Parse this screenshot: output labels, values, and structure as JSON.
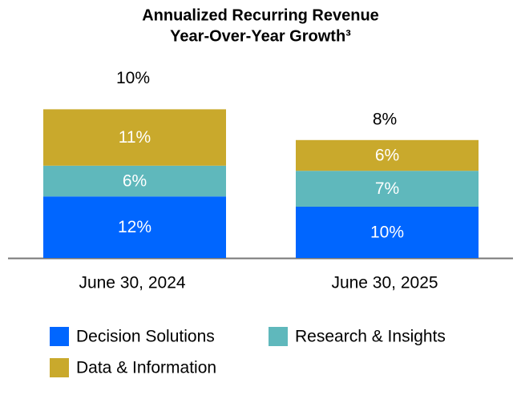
{
  "chart_data": {
    "type": "stacked-bar",
    "title": [
      "Annualized Recurring Revenue",
      "Year-Over-Year Growth³"
    ],
    "categories": [
      "June 30, 2024",
      "June 30, 2025"
    ],
    "series": [
      {
        "name": "Decision Solutions",
        "color": "#0066ff",
        "values": [
          12,
          10
        ],
        "value_labels": [
          "12%",
          "10%"
        ]
      },
      {
        "name": "Research & Insights",
        "color": "#5fb8bc",
        "values": [
          6,
          7
        ],
        "value_labels": [
          "6%",
          "7%"
        ]
      },
      {
        "name": "Data & Information",
        "color": "#c9a92c",
        "values": [
          11,
          6
        ],
        "value_labels": [
          "11%",
          "6%"
        ]
      }
    ],
    "totals": {
      "values": [
        10,
        8
      ],
      "value_labels": [
        "10%",
        "8%"
      ]
    }
  }
}
